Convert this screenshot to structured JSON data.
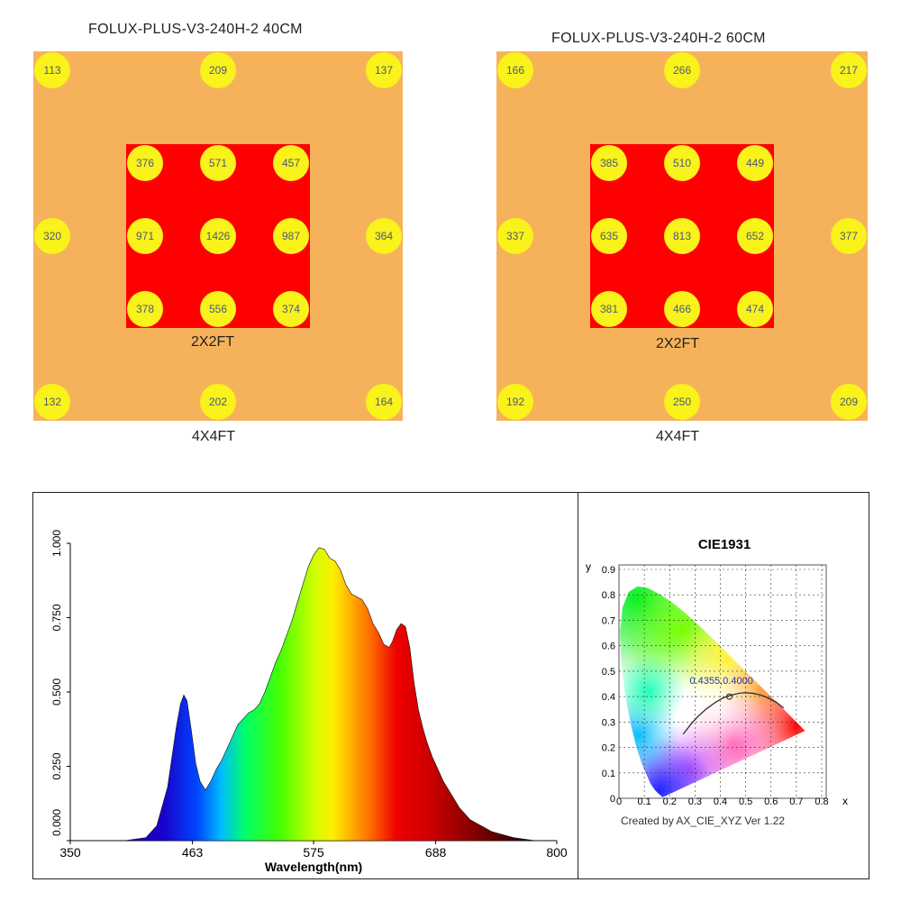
{
  "maps": [
    {
      "title": "FOLUX-PLUS-V3-240H-2   40CM",
      "inner_label": "2X2FT",
      "outer_label": "4X4FT",
      "outer_values": [
        [
          "113",
          "209",
          "137"
        ],
        [
          "320",
          "",
          "364"
        ],
        [
          "132",
          "202",
          "164"
        ]
      ],
      "inner_values": [
        [
          "376",
          "571",
          "457"
        ],
        [
          "971",
          "1426",
          "987"
        ],
        [
          "378",
          "556",
          "374"
        ]
      ]
    },
    {
      "title": "FOLUX-PLUS-V3-240H-2   60CM",
      "inner_label": "2X2FT",
      "outer_label": "4X4FT",
      "outer_values": [
        [
          "166",
          "266",
          "217"
        ],
        [
          "337",
          "",
          "377"
        ],
        [
          "192",
          "250",
          "209"
        ]
      ],
      "inner_values": [
        [
          "385",
          "510",
          "449"
        ],
        [
          "635",
          "813",
          "652"
        ],
        [
          "381",
          "466",
          "474"
        ]
      ]
    }
  ],
  "colors": {
    "outer_area": "#f6b25a",
    "inner_area": "#ff0000",
    "measure_dot": "#f9f21b"
  },
  "chart_data": [
    {
      "type": "area",
      "xlabel": "Wavelength(nm)",
      "x_ticks": [
        "350",
        "463",
        "575",
        "688",
        "800"
      ],
      "y_ticks": [
        "0.000",
        "0.250",
        "0.500",
        "0.750",
        "1.000"
      ],
      "xlim": [
        350,
        800
      ],
      "ylim": [
        0,
        1
      ],
      "fill": "visible-spectrum-gradient",
      "series": [
        {
          "x": [
            350,
            400,
            420,
            430,
            440,
            448,
            452,
            455,
            458,
            462,
            466,
            470,
            475,
            480,
            485,
            490,
            495,
            500,
            505,
            510,
            515,
            520,
            525,
            530,
            535,
            540,
            545,
            550,
            555,
            560,
            565,
            570,
            575,
            580,
            585,
            590,
            595,
            600,
            605,
            610,
            615,
            620,
            625,
            630,
            635,
            640,
            645,
            648,
            652,
            656,
            660,
            664,
            668,
            672,
            676,
            680,
            685,
            690,
            695,
            700,
            710,
            720,
            730,
            740,
            750,
            760,
            780,
            800
          ],
          "y": [
            0.0,
            0.0,
            0.01,
            0.05,
            0.18,
            0.38,
            0.46,
            0.49,
            0.47,
            0.37,
            0.26,
            0.2,
            0.17,
            0.2,
            0.24,
            0.27,
            0.31,
            0.35,
            0.39,
            0.41,
            0.43,
            0.44,
            0.46,
            0.5,
            0.55,
            0.6,
            0.64,
            0.69,
            0.74,
            0.8,
            0.86,
            0.92,
            0.96,
            0.985,
            0.98,
            0.95,
            0.94,
            0.91,
            0.86,
            0.83,
            0.82,
            0.81,
            0.78,
            0.73,
            0.7,
            0.66,
            0.65,
            0.67,
            0.71,
            0.73,
            0.72,
            0.65,
            0.53,
            0.44,
            0.38,
            0.33,
            0.28,
            0.24,
            0.2,
            0.17,
            0.11,
            0.07,
            0.05,
            0.03,
            0.02,
            0.01,
            0.0,
            0.0
          ]
        }
      ]
    },
    {
      "type": "scatter",
      "title": "CIE1931",
      "xlabel": "x",
      "ylabel": "y",
      "x_ticks": [
        "0",
        "0.1",
        "0.2",
        "0.3",
        "0.4",
        "0.5",
        "0.6",
        "0.7",
        "0.8"
      ],
      "y_ticks": [
        "0",
        "0.1",
        "0.2",
        "0.3",
        "0.4",
        "0.5",
        "0.6",
        "0.7",
        "0.8",
        "0.9"
      ],
      "xlim": [
        0,
        0.8
      ],
      "ylim": [
        0,
        0.9
      ],
      "grid": true,
      "point": {
        "x": 0.4355,
        "y": 0.4,
        "label": "0.4355,0.4000"
      },
      "spectral_locus": {
        "x": [
          0.1741,
          0.1738,
          0.1733,
          0.1726,
          0.1714,
          0.1689,
          0.1644,
          0.1566,
          0.144,
          0.1241,
          0.0913,
          0.0687,
          0.0454,
          0.0235,
          0.0082,
          0.0039,
          0.0139,
          0.0389,
          0.0743,
          0.1142,
          0.1547,
          0.1929,
          0.2296,
          0.2658,
          0.3016,
          0.3373,
          0.3731,
          0.4087,
          0.4441,
          0.4788,
          0.5125,
          0.5448,
          0.5752,
          0.6029,
          0.627,
          0.6482,
          0.6658,
          0.6801,
          0.6915,
          0.7006,
          0.7079,
          0.714,
          0.719,
          0.723,
          0.726,
          0.7347
        ],
        "y": [
          0.005,
          0.0049,
          0.0048,
          0.0048,
          0.0051,
          0.0069,
          0.0109,
          0.0177,
          0.0297,
          0.0578,
          0.1327,
          0.2007,
          0.295,
          0.4127,
          0.5384,
          0.6548,
          0.7502,
          0.812,
          0.8338,
          0.8262,
          0.8059,
          0.7816,
          0.7543,
          0.7243,
          0.6923,
          0.6589,
          0.6245,
          0.5896,
          0.5547,
          0.5202,
          0.4866,
          0.4544,
          0.4242,
          0.3965,
          0.3725,
          0.3514,
          0.334,
          0.3197,
          0.3083,
          0.2993,
          0.292,
          0.2859,
          0.2809,
          0.277,
          0.274,
          0.2653
        ]
      },
      "planckian_locus": {
        "x": [
          0.253,
          0.287,
          0.314,
          0.345,
          0.38,
          0.409,
          0.437,
          0.46,
          0.48,
          0.5,
          0.527,
          0.56,
          0.59,
          0.62,
          0.65
        ],
        "y": [
          0.252,
          0.295,
          0.324,
          0.352,
          0.377,
          0.394,
          0.404,
          0.41,
          0.414,
          0.415,
          0.413,
          0.406,
          0.394,
          0.378,
          0.355
        ]
      },
      "footer": "Created by AX_CIE_XYZ Ver 1.22"
    }
  ]
}
